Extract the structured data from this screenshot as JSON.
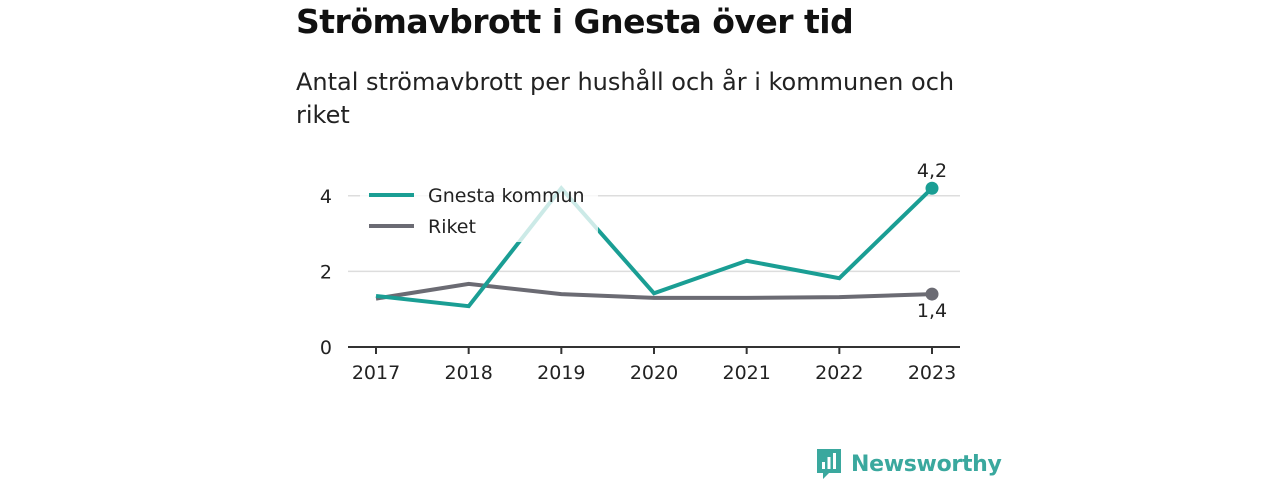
{
  "header": {
    "title": "Strömavbrott i Gnesta över tid",
    "subtitle": "Antal strömavbrott per hushåll och år i kommunen och riket"
  },
  "brand": {
    "name": "Newsworthy",
    "icon": "newsworthy-logo-icon",
    "color": "#3aa89e"
  },
  "colors": {
    "gnesta": "#1a9e94",
    "riket": "#6b6b73",
    "grid": "#dddddd",
    "axis": "#333333"
  },
  "chart_data": {
    "type": "line",
    "x": [
      2017,
      2018,
      2019,
      2020,
      2021,
      2022,
      2023
    ],
    "ylim": [
      0,
      4.5
    ],
    "yticks": [
      0,
      2,
      4
    ],
    "grid": true,
    "legend_position": "top-left",
    "series": [
      {
        "name": "Gnesta kommun",
        "values": [
          1.35,
          1.08,
          4.2,
          1.42,
          2.28,
          1.82,
          4.2
        ],
        "end_label": "4,2"
      },
      {
        "name": "Riket",
        "values": [
          1.28,
          1.67,
          1.4,
          1.3,
          1.3,
          1.32,
          1.4
        ],
        "end_label": "1,4"
      }
    ]
  }
}
